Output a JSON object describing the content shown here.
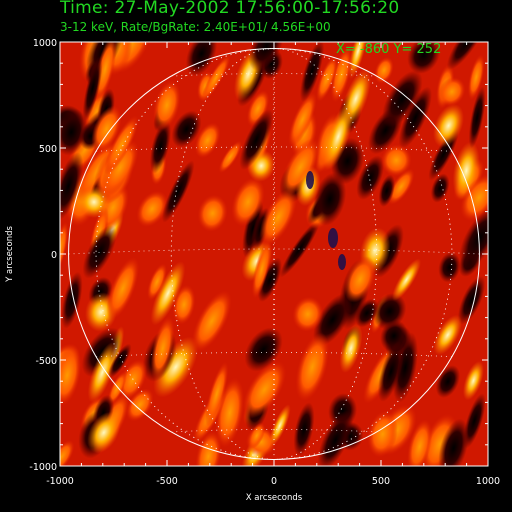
{
  "header": {
    "time_line": "Time: 27-May-2002 17:56:00-17:56:20",
    "energy_line": "3-12 keV, Rate/BgRate:  2.40E+01/  4.56E+00",
    "cursor_readout": "X= -860 Y=  252"
  },
  "axes": {
    "xlabel": "X arcseconds",
    "ylabel": "Y arcseconds",
    "x_ticks": [
      "-1000",
      "-500",
      "0",
      "500",
      "1000"
    ],
    "y_ticks": [
      "1000",
      "500",
      "0",
      "-500",
      "-1000"
    ],
    "x_range": [
      -1000,
      1000
    ],
    "y_range": [
      -1000,
      1000
    ],
    "x_tick_values": [
      -1000,
      -500,
      0,
      500,
      1000
    ],
    "y_tick_values": [
      1000,
      500,
      0,
      -500,
      -1000
    ]
  },
  "image": {
    "type": "solar X-ray map (back-projection fringe pattern)",
    "colormap": "red-temperature",
    "colors": {
      "low": "#000000",
      "mid": "#c01000",
      "high": "#ff8c00",
      "peak": "#fff2a0"
    },
    "limb_radius_arcsec": 960,
    "grid": true,
    "bright_source": {
      "x": -880,
      "y": 240
    }
  },
  "colors": {
    "text_green": "#22d822",
    "axis_white": "#ffffff"
  }
}
